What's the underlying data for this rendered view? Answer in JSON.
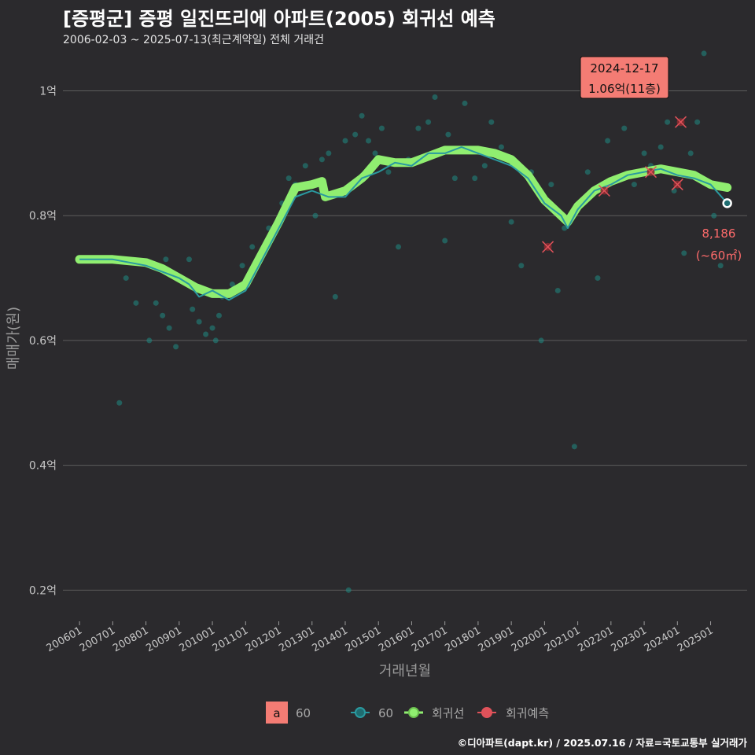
{
  "title": "[증평군] 증평 일진뜨리에 아파트(2005) 회귀선 예측",
  "subtitle": "2006-02-03 ~ 2025-07-13(최근계약일) 전체 거래건",
  "credit": "©디아파트(dapt.kr) / 2025.07.16 / 자료=국토교통부 실거래가",
  "colors": {
    "background": "#2b2a2d",
    "grid": "#5c5c5c",
    "raw_line": "#2a9aa0",
    "points": "#1f8a84",
    "regression": "#90ee70",
    "forecast": "#e0525a",
    "callout_fill": "#f47c74"
  },
  "callout": {
    "date": "2024-12-17",
    "value": "1.06억(11층)"
  },
  "last_annotation": {
    "price": "8,186",
    "area": "(~60㎡)"
  },
  "legend": {
    "swatch_letter": "a",
    "area_label": "60",
    "line_label": "60",
    "regression_label": "회귀선",
    "forecast_label": "회귀예측"
  },
  "chart_data": {
    "type": "scatter",
    "title": "[증평군] 증평 일진뜨리에 아파트(2005) 회귀선 예측",
    "xlabel": "거래년월",
    "ylabel": "매매가(원)",
    "ylim": [
      0.15,
      1.07
    ],
    "xlim": [
      2005.5,
      2026.1
    ],
    "y_unit": "억",
    "y_ticks": [
      0.2,
      0.4,
      0.6,
      0.8,
      1.0
    ],
    "y_tick_labels": [
      "0.2억",
      "0.4억",
      "0.6억",
      "0.8억",
      "1억"
    ],
    "x_ticks": [
      2006,
      2007,
      2008,
      2009,
      2010,
      2011,
      2012,
      2013,
      2014,
      2015,
      2016,
      2017,
      2018,
      2019,
      2020,
      2021,
      2022,
      2023,
      2024,
      2025
    ],
    "x_tick_labels": [
      "200601",
      "200701",
      "200801",
      "200901",
      "201001",
      "201101",
      "201201",
      "201301",
      "201401",
      "201501",
      "201601",
      "201701",
      "201801",
      "201901",
      "202001",
      "202101",
      "202201",
      "202301",
      "202401",
      "202501"
    ],
    "series": [
      {
        "name": "회귀선",
        "x": [
          2006.0,
          2007.0,
          2008.0,
          2008.5,
          2009.0,
          2009.5,
          2010.0,
          2010.5,
          2011.0,
          2011.5,
          2012.0,
          2012.5,
          2013.0,
          2013.3,
          2013.4,
          2014.0,
          2014.5,
          2014.6,
          2015.0,
          2015.5,
          2016.0,
          2016.5,
          2017.0,
          2017.5,
          2018.0,
          2018.5,
          2019.0,
          2019.5,
          2020.0,
          2020.5,
          2020.7,
          2021.0,
          2021.5,
          2022.0,
          2022.5,
          2023.0,
          2023.5,
          2024.0,
          2024.5,
          2025.0,
          2025.5
        ],
        "y": [
          0.73,
          0.73,
          0.725,
          0.715,
          0.7,
          0.685,
          0.675,
          0.675,
          0.69,
          0.74,
          0.79,
          0.845,
          0.85,
          0.855,
          0.83,
          0.84,
          0.86,
          0.865,
          0.89,
          0.885,
          0.885,
          0.895,
          0.905,
          0.905,
          0.905,
          0.9,
          0.89,
          0.865,
          0.825,
          0.8,
          0.79,
          0.815,
          0.84,
          0.855,
          0.865,
          0.87,
          0.875,
          0.87,
          0.865,
          0.85,
          0.845
        ]
      },
      {
        "name": "60",
        "x": [
          2006.0,
          2007.0,
          2008.0,
          2008.5,
          2009.0,
          2009.3,
          2009.6,
          2010.0,
          2010.5,
          2011.0,
          2011.5,
          2012.0,
          2012.5,
          2013.0,
          2013.5,
          2014.0,
          2014.5,
          2015.0,
          2015.5,
          2016.0,
          2016.5,
          2017.0,
          2017.5,
          2018.0,
          2018.5,
          2019.0,
          2019.5,
          2020.0,
          2020.5,
          2020.7,
          2021.0,
          2021.5,
          2022.0,
          2022.5,
          2023.0,
          2023.5,
          2024.0,
          2024.5,
          2025.0,
          2025.5
        ],
        "y": [
          0.73,
          0.73,
          0.72,
          0.71,
          0.7,
          0.69,
          0.67,
          0.68,
          0.665,
          0.68,
          0.73,
          0.78,
          0.83,
          0.84,
          0.83,
          0.83,
          0.86,
          0.87,
          0.885,
          0.88,
          0.9,
          0.9,
          0.91,
          0.9,
          0.89,
          0.88,
          0.86,
          0.82,
          0.8,
          0.78,
          0.81,
          0.84,
          0.85,
          0.865,
          0.87,
          0.875,
          0.865,
          0.86,
          0.85,
          0.82
        ]
      }
    ],
    "points": {
      "x": [
        2007.2,
        2007.4,
        2007.7,
        2008.1,
        2008.3,
        2008.5,
        2008.6,
        2008.7,
        2008.9,
        2009.1,
        2009.3,
        2009.4,
        2009.6,
        2009.8,
        2010.0,
        2010.1,
        2010.2,
        2010.3,
        2010.6,
        2010.9,
        2011.2,
        2011.5,
        2011.7,
        2012.1,
        2012.3,
        2012.5,
        2012.8,
        2013.1,
        2013.3,
        2013.5,
        2013.7,
        2014.0,
        2014.1,
        2014.3,
        2014.5,
        2014.7,
        2014.9,
        2015.1,
        2015.3,
        2015.6,
        2015.9,
        2016.2,
        2016.5,
        2016.7,
        2017.0,
        2017.1,
        2017.3,
        2017.6,
        2017.9,
        2018.2,
        2018.4,
        2018.7,
        2019.0,
        2019.3,
        2019.6,
        2019.9,
        2020.2,
        2020.4,
        2020.6,
        2020.9,
        2021.1,
        2021.3,
        2021.6,
        2021.9,
        2022.1,
        2022.4,
        2022.7,
        2023.0,
        2023.2,
        2023.5,
        2023.7,
        2023.9,
        2024.2,
        2024.4,
        2024.6,
        2024.8,
        2025.1,
        2025.3
      ],
      "y": [
        0.5,
        0.7,
        0.66,
        0.6,
        0.66,
        0.64,
        0.73,
        0.62,
        0.59,
        0.7,
        0.73,
        0.65,
        0.63,
        0.61,
        0.62,
        0.6,
        0.64,
        0.67,
        0.69,
        0.72,
        0.75,
        0.74,
        0.78,
        0.82,
        0.86,
        0.85,
        0.88,
        0.8,
        0.89,
        0.9,
        0.67,
        0.92,
        0.2,
        0.93,
        0.96,
        0.92,
        0.9,
        0.94,
        0.87,
        0.75,
        0.89,
        0.94,
        0.95,
        0.99,
        0.76,
        0.93,
        0.86,
        0.98,
        0.86,
        0.88,
        0.95,
        0.91,
        0.79,
        0.72,
        0.87,
        0.6,
        0.85,
        0.68,
        0.78,
        0.43,
        0.82,
        0.87,
        0.7,
        0.92,
        0.86,
        0.94,
        0.85,
        0.9,
        0.88,
        0.91,
        0.95,
        0.84,
        0.74,
        0.9,
        0.95,
        1.06,
        0.8,
        0.72
      ]
    },
    "forecast": {
      "x": [
        2020.1,
        2021.8,
        2023.2,
        2024.0,
        2024.1
      ],
      "y": [
        0.75,
        0.84,
        0.87,
        0.85,
        0.95
      ]
    },
    "last_point": {
      "x": 2025.5,
      "y": 0.82
    }
  }
}
